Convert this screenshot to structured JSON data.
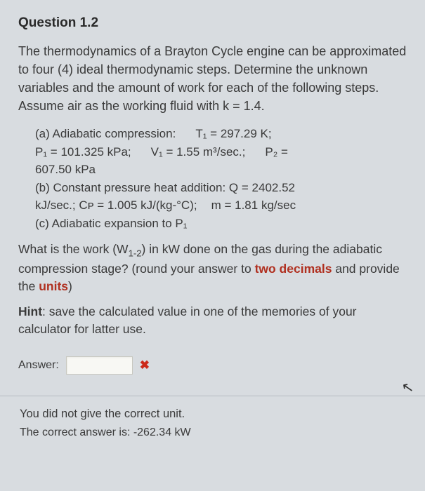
{
  "title": "Question 1.2",
  "body": "The thermodynamics of a Brayton Cycle engine can be approximated to four (4) ideal thermodynamic steps. Determine the unknown variables and the amount of work for each of the following steps. Assume air as the working fluid with k = 1.4.",
  "steps": {
    "a_label": "(a) Adiabatic compression:",
    "a_t1": "T₁ = 297.29 K;",
    "a_p1": "P₁ = 101.325 kPa;",
    "a_v1": "V₁ = 1.55 m³/sec.;",
    "a_p2": "P₂ =",
    "a_p2val": "607.50 kPa",
    "b_label": "(b) Constant pressure heat addition: Q = 2402.52",
    "b_line2": "kJ/sec.; Cᴘ = 1.005 kJ/(kg-°C);",
    "b_m": "m = 1.81 kg/sec",
    "c_label": "(c) Adiabatic expansion to P₁"
  },
  "ask_pre": "What is the work (W",
  "ask_sub": "1-2",
  "ask_mid": ") in kW done on the gas during the adiabatic compression stage? (round your answer to ",
  "ask_two": "two decimals",
  "ask_mid2": " and provide the ",
  "ask_units": "units",
  "ask_end": ")",
  "hint_label": "Hint",
  "hint_text": ": save the calculated value in one of the memories of your calculator for latter use.",
  "answer_label": "Answer:",
  "answer_value": "",
  "feedback_line1": "You did not give the correct unit.",
  "feedback_line2": "The correct answer is: -262.34 kW",
  "colors": {
    "background": "#d8dce0",
    "text": "#3a3a3a",
    "emphasis": "#b03020",
    "wrong_icon": "#cc2a1a",
    "input_bg": "#f8f8f4",
    "divider": "#b5bbc0"
  }
}
